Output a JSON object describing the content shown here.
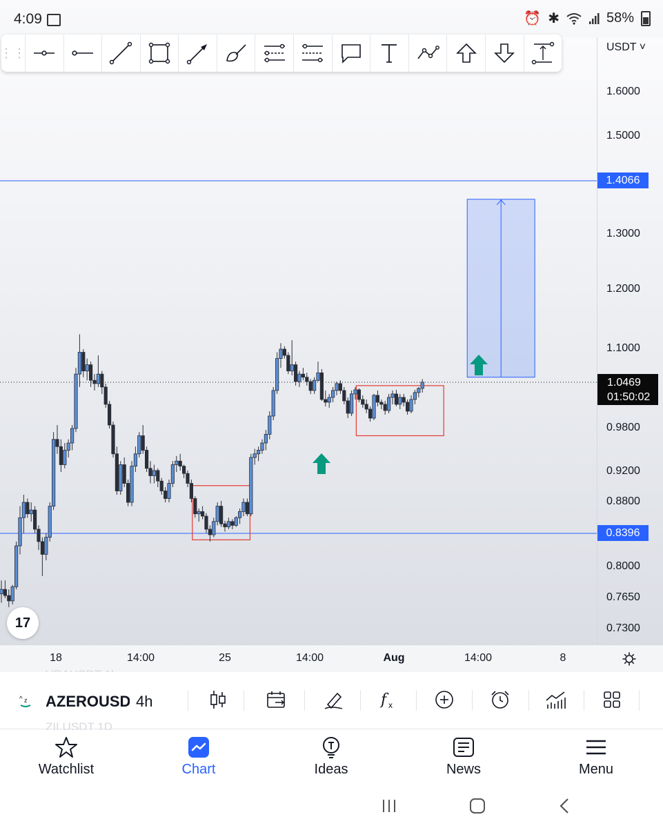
{
  "status_bar": {
    "time": "4:09",
    "battery": "58%"
  },
  "toolbar": {
    "tools": [
      "horizontal-ray-tool",
      "horizontal-line-tool",
      "trend-line-tool",
      "rectangle-tool",
      "arrow-tool",
      "brush-tool",
      "parallel-channel-tool",
      "regression-trend-tool",
      "callout-tool",
      "text-tool",
      "path-tool",
      "arrow-up-tool",
      "arrow-down-tool",
      "price-range-tool"
    ]
  },
  "price_axis": {
    "currency": "USDT",
    "labels": [
      "1.6000",
      "1.5000",
      "1.3000",
      "1.2000",
      "1.1000",
      "0.9800",
      "0.9200",
      "0.8800",
      "0.8000",
      "0.7650",
      "0.7300"
    ],
    "resistance_tag": "1.4066",
    "support_tag": "0.8396",
    "last_price": "1.0469",
    "countdown": "01:50:02"
  },
  "time_axis": {
    "labels": [
      "18",
      "14:00",
      "25",
      "14:00",
      "Aug",
      "14:00",
      "8"
    ]
  },
  "ghost_text": {
    "above": "VRAUSDT 1h",
    "below": "ZILUSDT 1D"
  },
  "symbol_bar": {
    "symbol": "AZEROUSDT",
    "interval": "4h"
  },
  "bottom_nav": {
    "items": [
      {
        "label": "Watchlist",
        "icon": "star-icon"
      },
      {
        "label": "Chart",
        "icon": "chart-icon",
        "active": true
      },
      {
        "label": "Ideas",
        "icon": "lightbulb-icon"
      },
      {
        "label": "News",
        "icon": "news-icon"
      },
      {
        "label": "Menu",
        "icon": "menu-icon"
      }
    ]
  },
  "colors": {
    "accent": "#2962ff",
    "candle_up": "#5b8fd6",
    "candle_down": "#2a2e39",
    "arrow_green": "#089981",
    "box_red": "#e53935"
  },
  "chart_data": {
    "type": "candlestick",
    "symbol": "AZEROUSDT",
    "interval": "4h",
    "ohlc": [
      [
        0.77,
        0.785,
        0.76,
        0.775
      ],
      [
        0.775,
        0.785,
        0.765,
        0.768
      ],
      [
        0.768,
        0.775,
        0.755,
        0.762
      ],
      [
        0.762,
        0.78,
        0.758,
        0.778
      ],
      [
        0.778,
        0.83,
        0.775,
        0.825
      ],
      [
        0.825,
        0.875,
        0.815,
        0.86
      ],
      [
        0.86,
        0.89,
        0.84,
        0.88
      ],
      [
        0.88,
        0.885,
        0.86,
        0.865
      ],
      [
        0.865,
        0.88,
        0.855,
        0.87
      ],
      [
        0.87,
        0.875,
        0.84,
        0.845
      ],
      [
        0.845,
        0.85,
        0.82,
        0.83
      ],
      [
        0.83,
        0.835,
        0.79,
        0.815
      ],
      [
        0.815,
        0.84,
        0.808,
        0.835
      ],
      [
        0.835,
        0.88,
        0.83,
        0.875
      ],
      [
        0.875,
        0.975,
        0.87,
        0.965
      ],
      [
        0.965,
        0.985,
        0.945,
        0.955
      ],
      [
        0.955,
        0.965,
        0.92,
        0.93
      ],
      [
        0.93,
        0.96,
        0.925,
        0.95
      ],
      [
        0.95,
        0.965,
        0.94,
        0.96
      ],
      [
        0.96,
        0.985,
        0.95,
        0.98
      ],
      [
        0.98,
        1.07,
        0.975,
        1.06
      ],
      [
        1.06,
        1.125,
        1.04,
        1.095
      ],
      [
        1.095,
        1.1,
        1.055,
        1.065
      ],
      [
        1.065,
        1.085,
        1.05,
        1.075
      ],
      [
        1.075,
        1.08,
        1.04,
        1.05
      ],
      [
        1.05,
        1.06,
        1.035,
        1.045
      ],
      [
        1.045,
        1.09,
        1.04,
        1.06
      ],
      [
        1.06,
        1.065,
        1.03,
        1.04
      ],
      [
        1.04,
        1.045,
        1.01,
        1.015
      ],
      [
        1.015,
        1.02,
        0.98,
        0.985
      ],
      [
        0.985,
        0.99,
        0.94,
        0.945
      ],
      [
        0.945,
        0.955,
        0.89,
        0.895
      ],
      [
        0.895,
        0.935,
        0.89,
        0.93
      ],
      [
        0.93,
        0.94,
        0.9,
        0.905
      ],
      [
        0.905,
        0.91,
        0.875,
        0.88
      ],
      [
        0.88,
        0.935,
        0.875,
        0.928
      ],
      [
        0.928,
        0.955,
        0.92,
        0.945
      ],
      [
        0.945,
        0.975,
        0.94,
        0.97
      ],
      [
        0.97,
        0.985,
        0.945,
        0.95
      ],
      [
        0.95,
        0.955,
        0.92,
        0.925
      ],
      [
        0.925,
        0.935,
        0.905,
        0.915
      ],
      [
        0.915,
        0.93,
        0.905,
        0.922
      ],
      [
        0.922,
        0.925,
        0.9,
        0.908
      ],
      [
        0.908,
        0.912,
        0.89,
        0.895
      ],
      [
        0.895,
        0.9,
        0.88,
        0.885
      ],
      [
        0.885,
        0.91,
        0.88,
        0.905
      ],
      [
        0.905,
        0.935,
        0.9,
        0.93
      ],
      [
        0.93,
        0.942,
        0.92,
        0.935
      ],
      [
        0.935,
        0.945,
        0.922,
        0.928
      ],
      [
        0.928,
        0.93,
        0.912,
        0.918
      ],
      [
        0.918,
        0.922,
        0.9,
        0.905
      ],
      [
        0.905,
        0.91,
        0.88,
        0.885
      ],
      [
        0.885,
        0.888,
        0.86,
        0.865
      ],
      [
        0.865,
        0.872,
        0.855,
        0.868
      ],
      [
        0.868,
        0.875,
        0.858,
        0.862
      ],
      [
        0.862,
        0.866,
        0.84,
        0.845
      ],
      [
        0.845,
        0.85,
        0.83,
        0.838
      ],
      [
        0.838,
        0.86,
        0.835,
        0.855
      ],
      [
        0.855,
        0.88,
        0.85,
        0.875
      ],
      [
        0.875,
        0.882,
        0.848,
        0.852
      ],
      [
        0.852,
        0.856,
        0.842,
        0.848
      ],
      [
        0.848,
        0.86,
        0.845,
        0.855
      ],
      [
        0.855,
        0.858,
        0.845,
        0.85
      ],
      [
        0.85,
        0.862,
        0.848,
        0.86
      ],
      [
        0.86,
        0.872,
        0.852,
        0.868
      ],
      [
        0.868,
        0.885,
        0.862,
        0.88
      ],
      [
        0.88,
        0.885,
        0.862,
        0.865
      ],
      [
        0.865,
        0.945,
        0.862,
        0.94
      ],
      [
        0.94,
        0.952,
        0.93,
        0.945
      ],
      [
        0.945,
        0.955,
        0.935,
        0.95
      ],
      [
        0.95,
        0.965,
        0.945,
        0.96
      ],
      [
        0.96,
        0.978,
        0.95,
        0.972
      ],
      [
        0.972,
        1.005,
        0.965,
        0.998
      ],
      [
        0.998,
        1.04,
        0.992,
        1.035
      ],
      [
        1.035,
        1.095,
        1.03,
        1.085
      ],
      [
        1.085,
        1.11,
        1.07,
        1.1
      ],
      [
        1.1,
        1.105,
        1.085,
        1.09
      ],
      [
        1.09,
        1.095,
        1.06,
        1.065
      ],
      [
        1.065,
        1.115,
        1.058,
        1.075
      ],
      [
        1.075,
        1.08,
        1.042,
        1.048
      ],
      [
        1.048,
        1.065,
        1.04,
        1.06
      ],
      [
        1.06,
        1.07,
        1.05,
        1.055
      ],
      [
        1.055,
        1.062,
        1.042,
        1.048
      ],
      [
        1.048,
        1.052,
        1.03,
        1.035
      ],
      [
        1.035,
        1.055,
        1.03,
        1.05
      ],
      [
        1.05,
        1.08,
        1.048,
        1.062
      ],
      [
        1.062,
        1.068,
        1.02,
        1.022
      ],
      [
        1.022,
        1.035,
        1.012,
        1.018
      ],
      [
        1.018,
        1.03,
        1.01,
        1.025
      ],
      [
        1.025,
        1.04,
        1.018,
        1.035
      ],
      [
        1.035,
        1.048,
        1.028,
        1.045
      ],
      [
        1.045,
        1.05,
        1.03,
        1.035
      ],
      [
        1.035,
        1.04,
        1.015,
        1.02
      ],
      [
        1.02,
        1.025,
        0.995,
        1.002
      ],
      [
        1.002,
        1.035,
        0.998,
        1.03
      ],
      [
        1.03,
        1.04,
        1.022,
        1.036
      ],
      [
        1.036,
        1.038,
        1.018,
        1.022
      ],
      [
        1.022,
        1.028,
        1.01,
        1.015
      ],
      [
        1.015,
        1.022,
        1.002,
        1.008
      ],
      [
        1.008,
        1.012,
        0.99,
        0.995
      ],
      [
        0.995,
        1.03,
        0.992,
        1.028
      ],
      [
        1.028,
        1.035,
        1.012,
        1.018
      ],
      [
        1.018,
        1.022,
        1.008,
        1.015
      ],
      [
        1.015,
        1.02,
        1.0,
        1.006
      ],
      [
        1.006,
        1.03,
        1.002,
        1.025
      ],
      [
        1.025,
        1.035,
        1.015,
        1.03
      ],
      [
        1.03,
        1.036,
        1.012,
        1.015
      ],
      [
        1.015,
        1.03,
        1.008,
        1.025
      ],
      [
        1.025,
        1.03,
        1.012,
        1.018
      ],
      [
        1.018,
        1.022,
        1.0,
        1.005
      ],
      [
        1.005,
        1.028,
        1.002,
        1.022
      ],
      [
        1.022,
        1.036,
        1.015,
        1.032
      ],
      [
        1.032,
        1.04,
        1.025,
        1.038
      ],
      [
        1.038,
        1.052,
        1.032,
        1.047
      ]
    ],
    "horizontal_lines": [
      1.4066,
      0.8396
    ],
    "last_price": 1.0469,
    "consolidation_boxes": [
      {
        "from_bar": 52,
        "to_bar": 66,
        "top": 0.902,
        "bottom": 0.832
      },
      {
        "from_bar": 96,
        "to_bar": 118,
        "top": 1.042,
        "bottom": 0.97
      }
    ],
    "projection_range": {
      "bottom": 1.055,
      "top": 1.37
    },
    "ylim": [
      0.7,
      1.65
    ],
    "y_tick_labels": [
      "1.6000",
      "1.5000",
      "1.3000",
      "1.2000",
      "1.1000",
      "0.9800",
      "0.9200",
      "0.8800",
      "0.8000",
      "0.7650",
      "0.7300"
    ],
    "x_tick_labels": [
      "18",
      "14:00",
      "25",
      "14:00",
      "Aug",
      "14:00",
      "8"
    ],
    "grid": false
  }
}
